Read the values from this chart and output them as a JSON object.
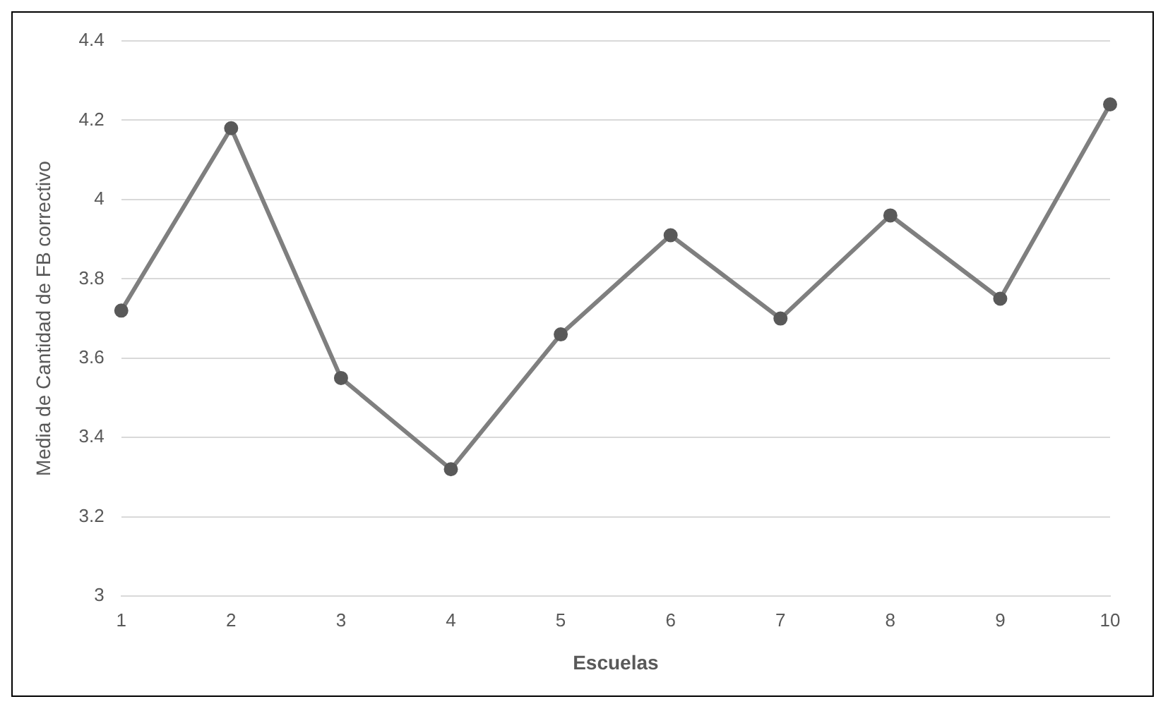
{
  "chart_data": {
    "type": "line",
    "xlabel": "Escuelas",
    "ylabel": "Media de Cantidad de FB correctivo",
    "categories": [
      "1",
      "2",
      "3",
      "4",
      "5",
      "6",
      "7",
      "8",
      "9",
      "10"
    ],
    "series": [
      {
        "color": "#7f7f7f",
        "values": [
          3.72,
          4.18,
          3.55,
          3.32,
          3.66,
          3.91,
          3.7,
          3.96,
          3.75,
          4.24
        ]
      }
    ],
    "ylim": [
      3,
      4.4
    ],
    "yticks": [
      3,
      3.2,
      3.4,
      3.6,
      3.8,
      4,
      4.2,
      4.4
    ],
    "grid": "y",
    "legend": false,
    "marker": "circle",
    "line_style": "solid"
  }
}
